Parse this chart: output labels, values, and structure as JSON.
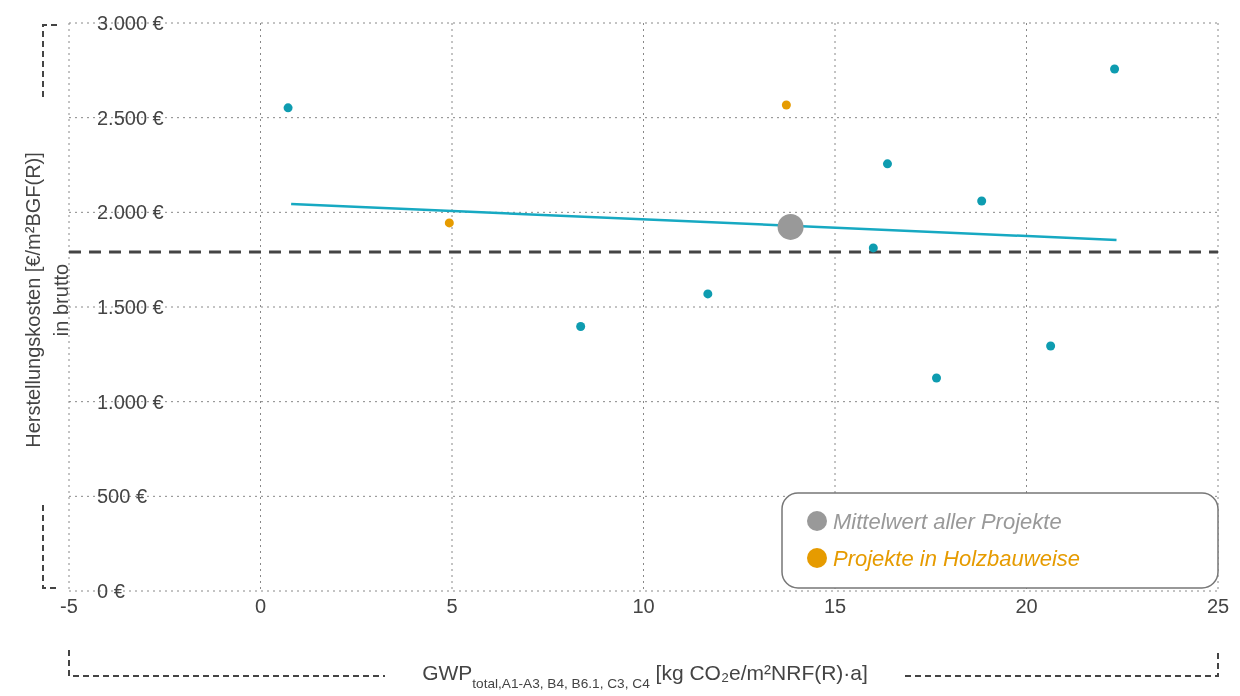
{
  "chart_data": {
    "type": "scatter",
    "xlabel": "GWP$_{total,A1-A3, B4, B6.1, C3, C4}$ [kg CO₂e/m²NRF(R)·a]",
    "ylabel": "Herstellungskosten [€/m²BGF(R)]\nin brutto",
    "xlim": [
      -5,
      25
    ],
    "xticks": [
      -5,
      0,
      5,
      10,
      15,
      20,
      25
    ],
    "ylim": [
      0,
      3000
    ],
    "yticks": [
      {
        "value": 0,
        "label": "0 €"
      },
      {
        "value": 500,
        "label": "500 €"
      },
      {
        "value": 1000,
        "label": "1.000 €"
      },
      {
        "value": 1500,
        "label": "1.500 €"
      },
      {
        "value": 2000,
        "label": "2.000 €"
      },
      {
        "value": 2500,
        "label": "2.500 €"
      },
      {
        "value": 3000,
        "label": "3.000 €"
      }
    ],
    "grid": true,
    "legend": "bottom right",
    "marker": "circle",
    "ref_lines": [
      {
        "axis": "y",
        "value": 1790,
        "color": "#444444",
        "line_style": "dashed"
      }
    ],
    "series": [
      {
        "type": "line",
        "marker": "none",
        "color": "#17a9c2",
        "x": [
          0.8,
          22.35
        ],
        "values": [
          2044,
          1854
        ]
      },
      {
        "color": "#0e9cb0",
        "x": [
          0.72,
          8.36,
          11.68,
          16.0,
          16.37,
          17.65,
          18.83,
          20.63,
          22.3
        ],
        "values": [
          2552,
          1397,
          1569,
          1812,
          2256,
          1125,
          2060,
          1294,
          2757
        ]
      },
      {
        "type": "bubble",
        "name": "Mittelwert aller Projekte",
        "color": "#999999",
        "x": [
          13.84
        ],
        "values": [
          1923
        ],
        "sizes": [
          1
        ]
      },
      {
        "name": "Projekte in Holzbauweise",
        "color": "#e69b00",
        "x": [
          4.93,
          13.73
        ],
        "values": [
          1944,
          2567
        ]
      }
    ]
  }
}
